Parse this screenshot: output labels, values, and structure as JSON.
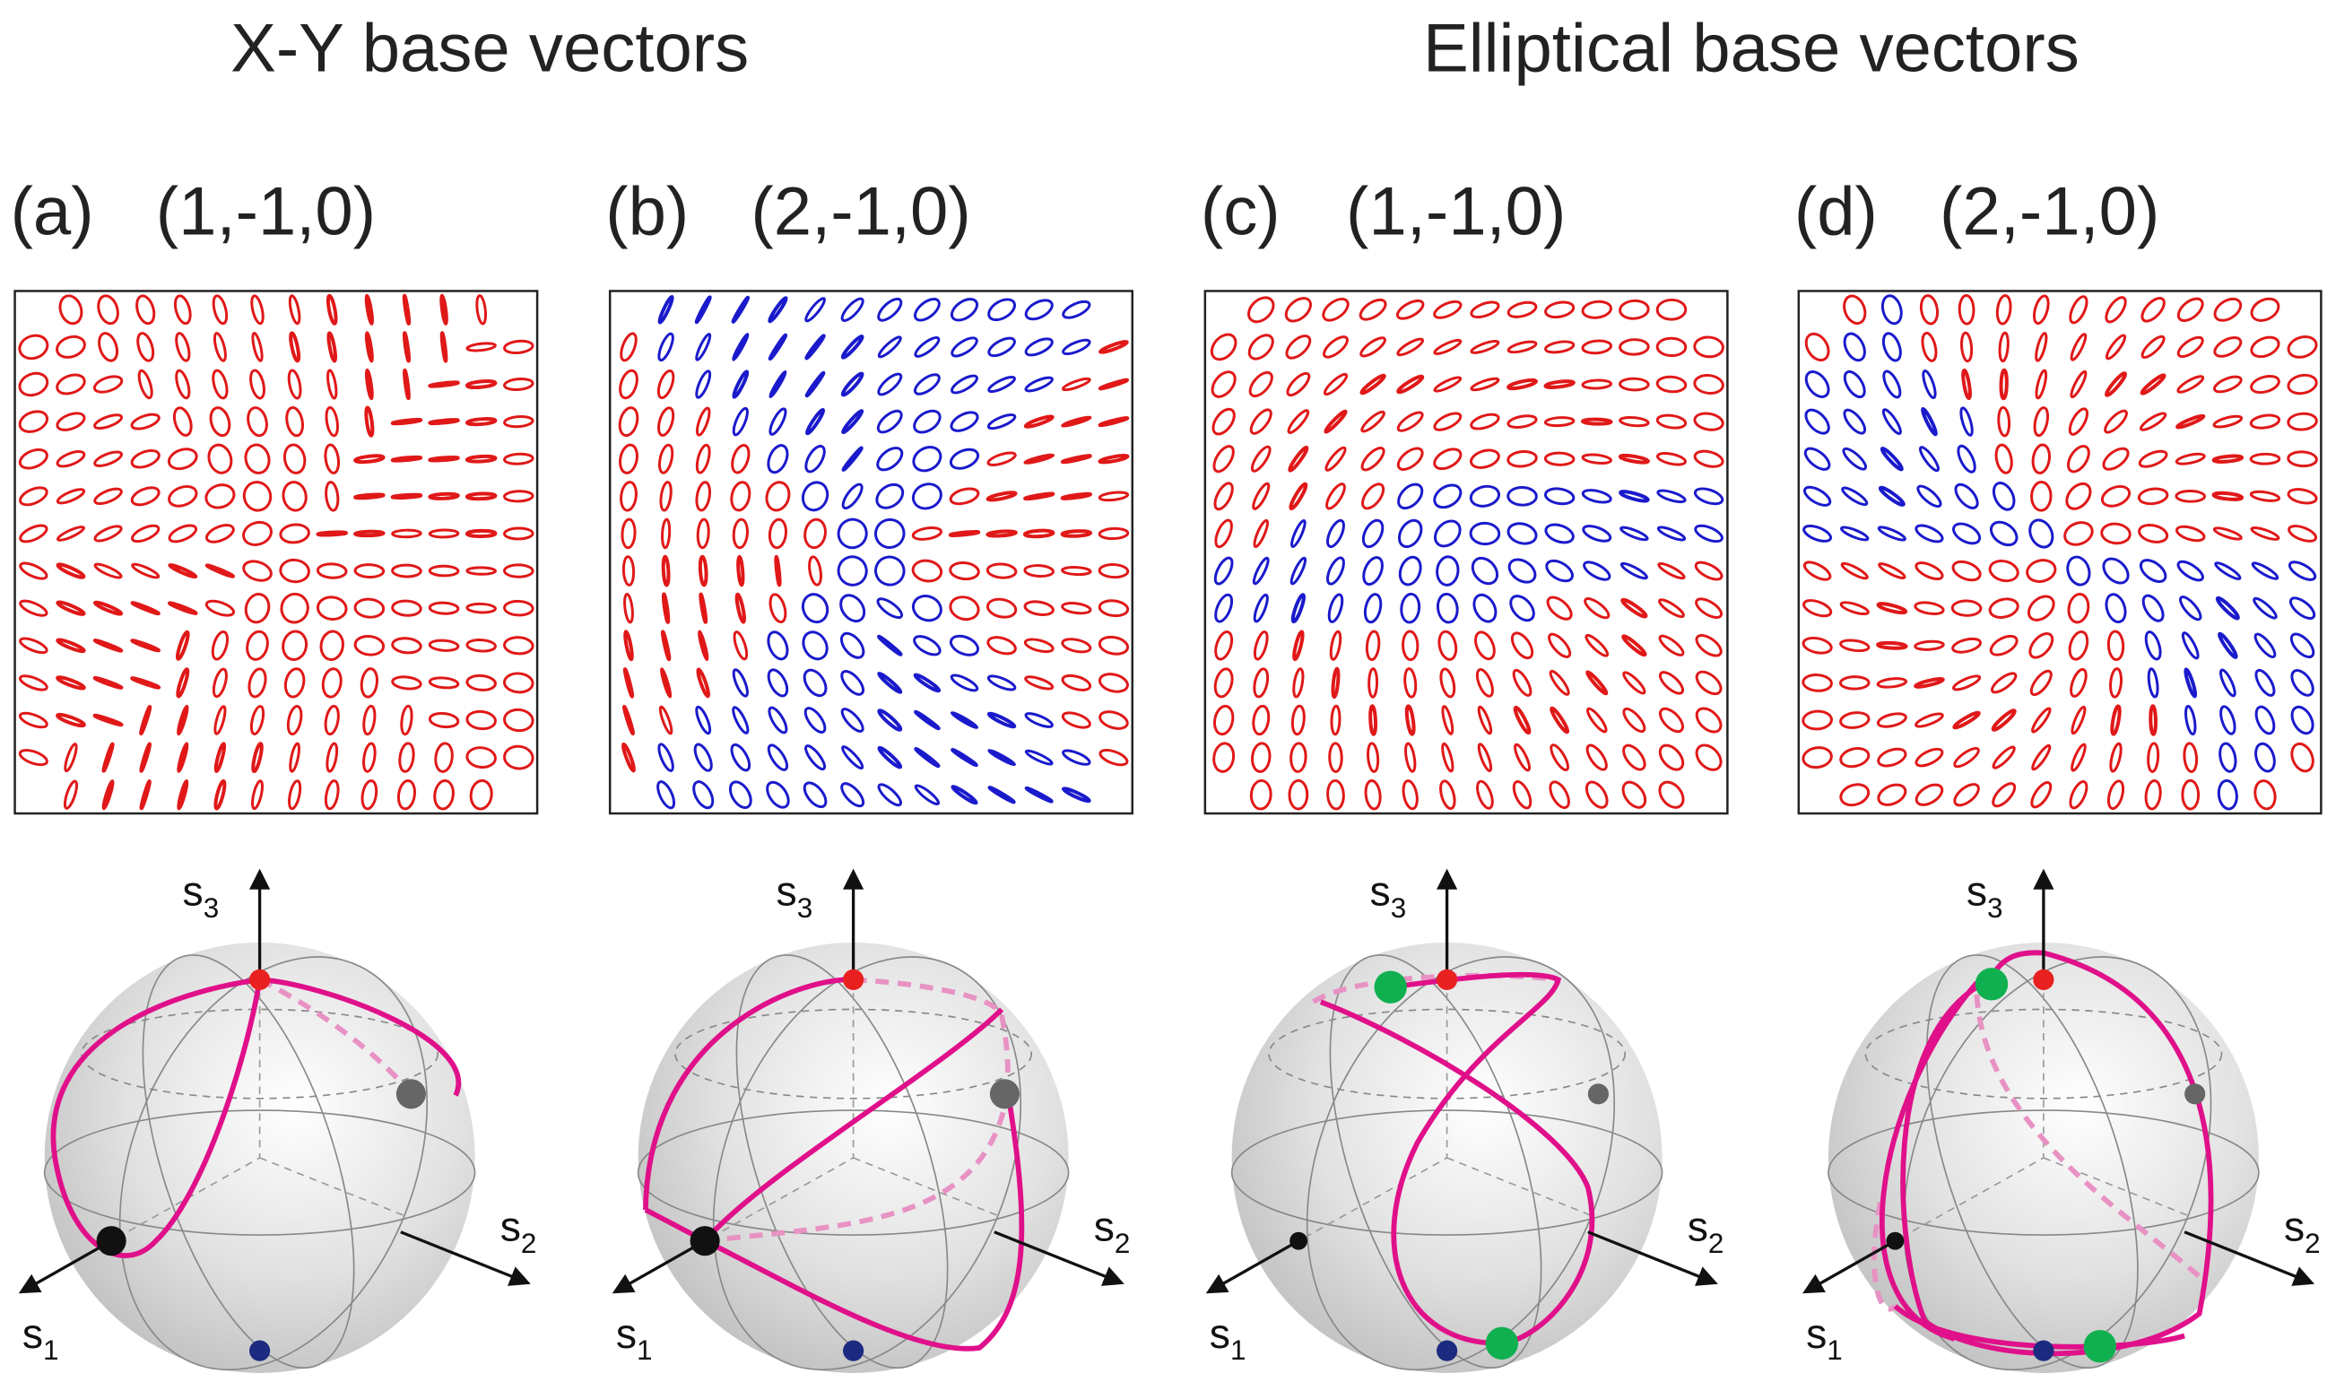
{
  "headings": [
    "X-Y base vectors",
    "Elliptical base vectors"
  ],
  "panels": [
    {
      "label": "(a)",
      "indices": "(1,-1,0)"
    },
    {
      "label": "(b)",
      "indices": "(2,-1,0)"
    },
    {
      "label": "(c)",
      "indices": "(1,-1,0)"
    },
    {
      "label": "(d)",
      "indices": "(2,-1,0)"
    }
  ],
  "axis_labels": [
    {
      "base": "s",
      "sub": "1"
    },
    {
      "base": "s",
      "sub": "2"
    },
    {
      "base": "s",
      "sub": "3"
    }
  ]
}
